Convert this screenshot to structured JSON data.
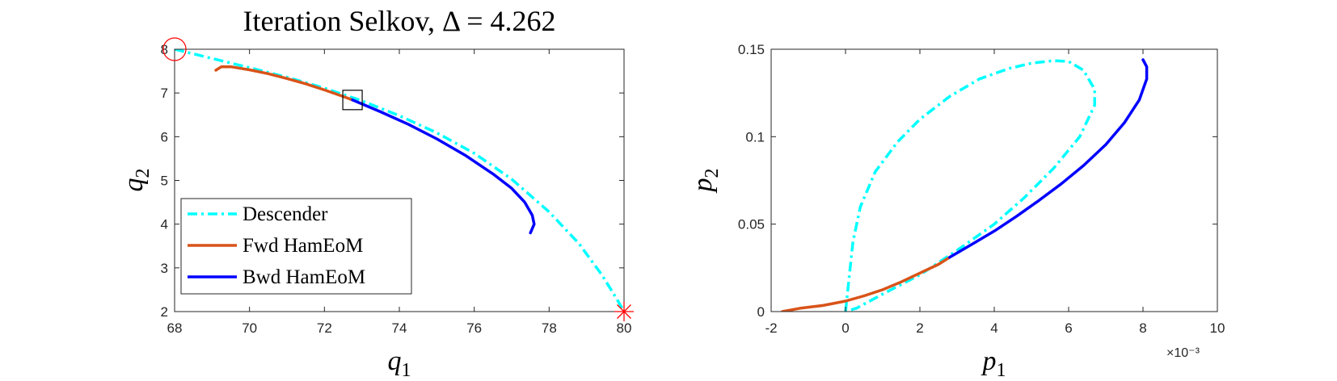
{
  "figure": {
    "left_title": "Iteration Selkov, Δ = 4.262",
    "right_exponent_label": "×10⁻³"
  },
  "chart_data": [
    {
      "type": "line",
      "title": "Iteration Selkov, Δ = 4.262",
      "xlabel": "q1",
      "ylabel": "q2",
      "xlim": [
        68,
        80
      ],
      "ylim": [
        2,
        8
      ],
      "xticks": [
        68,
        70,
        72,
        74,
        76,
        78,
        80
      ],
      "yticks": [
        2,
        3,
        4,
        5,
        6,
        7,
        8
      ],
      "grid": false,
      "legend_position": "bottom-left",
      "series": [
        {
          "name": "Descender",
          "color": "#00ffff",
          "style": "dash-dot",
          "x": [
            68.0,
            69.0,
            70.0,
            71.0,
            72.0,
            73.0,
            74.0,
            75.0,
            76.0,
            77.0,
            78.0,
            78.8,
            79.4,
            79.8,
            80.0
          ],
          "y": [
            8.0,
            7.79,
            7.58,
            7.36,
            7.11,
            6.82,
            6.48,
            6.09,
            5.62,
            5.03,
            4.28,
            3.55,
            2.85,
            2.3,
            2.0
          ]
        },
        {
          "name": "Fwd HamEoM",
          "color": "#d95319",
          "style": "solid",
          "x": [
            69.1,
            69.25,
            69.5,
            70.0,
            70.5,
            71.0,
            71.5,
            72.0,
            72.5,
            72.75
          ],
          "y": [
            7.52,
            7.6,
            7.6,
            7.53,
            7.44,
            7.33,
            7.21,
            7.07,
            6.92,
            6.84
          ]
        },
        {
          "name": "Bwd HamEoM",
          "color": "#0000ff",
          "style": "solid",
          "x": [
            72.75,
            73.5,
            74.25,
            75.0,
            75.75,
            76.5,
            77.0,
            77.35,
            77.55,
            77.6,
            77.5
          ],
          "y": [
            6.84,
            6.57,
            6.28,
            5.95,
            5.58,
            5.15,
            4.82,
            4.5,
            4.2,
            4.0,
            3.8
          ]
        }
      ],
      "markers": [
        {
          "name": "start-circle",
          "shape": "circle",
          "color": "#ff0000",
          "x": 68.0,
          "y": 8.0
        },
        {
          "name": "junction-square",
          "shape": "square",
          "color": "#000000",
          "x": 72.75,
          "y": 6.84
        },
        {
          "name": "end-asterisk",
          "shape": "asterisk",
          "color": "#ff0000",
          "x": 80.0,
          "y": 2.0
        }
      ]
    },
    {
      "type": "line",
      "title": "",
      "xlabel": "p1",
      "ylabel": "p2",
      "x_scale_note": "×10⁻³",
      "xlim": [
        -0.002,
        0.01
      ],
      "ylim": [
        0,
        0.15
      ],
      "xticks": [
        -0.002,
        0,
        0.002,
        0.004,
        0.006,
        0.008,
        0.01
      ],
      "xtick_labels": [
        "-2",
        "0",
        "2",
        "4",
        "6",
        "8",
        "10"
      ],
      "yticks": [
        0,
        0.05,
        0.1,
        0.15
      ],
      "ytick_labels": [
        "0",
        "0.05",
        "0.1",
        "0.15"
      ],
      "grid": false,
      "series": [
        {
          "name": "Descender",
          "color": "#00ffff",
          "style": "dash-dot",
          "x": [
            0.0,
            0.0001,
            0.0002,
            0.0004,
            0.0008,
            0.0014,
            0.002,
            0.0028,
            0.0036,
            0.0044,
            0.005,
            0.0056,
            0.006,
            0.0064,
            0.0067,
            0.0067,
            0.0063,
            0.0056,
            0.0048,
            0.004,
            0.003,
            0.002,
            0.001,
            0.0003,
            0.0
          ],
          "y": [
            0.0,
            0.02,
            0.04,
            0.06,
            0.08,
            0.097,
            0.11,
            0.123,
            0.133,
            0.139,
            0.142,
            0.1435,
            0.143,
            0.138,
            0.127,
            0.118,
            0.1,
            0.082,
            0.065,
            0.05,
            0.035,
            0.021,
            0.01,
            0.002,
            0.0
          ]
        },
        {
          "name": "Fwd HamEoM",
          "color": "#d95319",
          "style": "solid",
          "x": [
            -0.0017,
            -0.0012,
            -0.0006,
            0.0,
            0.0005,
            0.001,
            0.0015,
            0.002,
            0.0025,
            0.0028
          ],
          "y": [
            0.0,
            0.002,
            0.0035,
            0.006,
            0.009,
            0.0125,
            0.017,
            0.022,
            0.027,
            0.031
          ]
        },
        {
          "name": "Bwd HamEoM",
          "color": "#0000ff",
          "style": "solid",
          "x": [
            0.0028,
            0.0034,
            0.004,
            0.0046,
            0.0052,
            0.0058,
            0.0064,
            0.007,
            0.0075,
            0.0079,
            0.0081,
            0.0081,
            0.008
          ],
          "y": [
            0.031,
            0.0385,
            0.046,
            0.0545,
            0.0635,
            0.073,
            0.0835,
            0.0955,
            0.108,
            0.121,
            0.133,
            0.14,
            0.144
          ]
        }
      ]
    }
  ]
}
